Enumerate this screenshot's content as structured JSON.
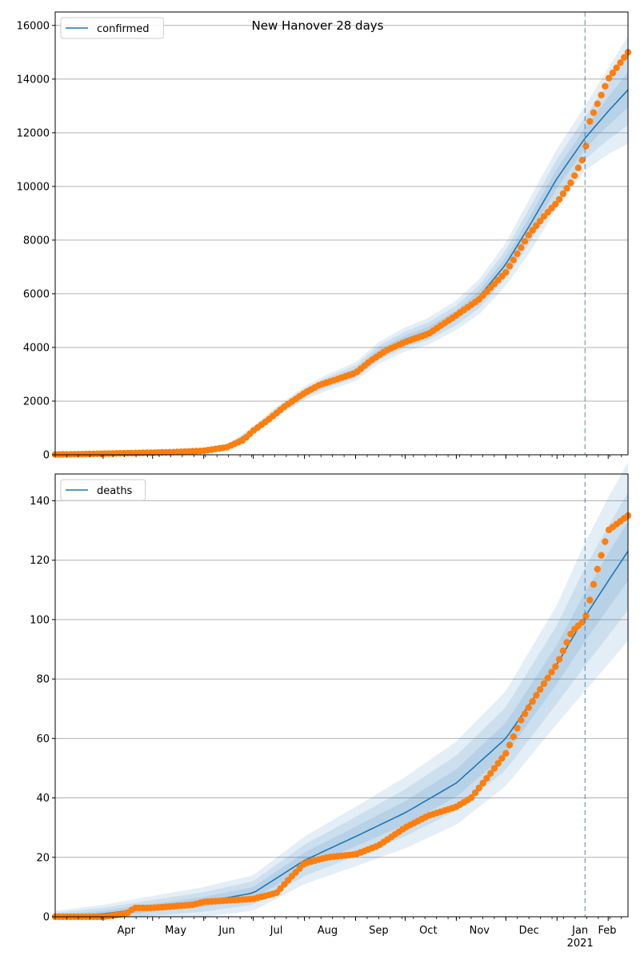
{
  "title": "New Hanover 28 days",
  "colors": {
    "model_line": "#1f77b4",
    "observed_points": "#ff7f0e",
    "band": "#1f77b4",
    "grid": "#b0b0b0",
    "forecast_marker": "#1f77b4"
  },
  "x_axis": {
    "tick_labels": [
      "Apr",
      "May",
      "Jun",
      "Jul",
      "Aug",
      "Sep",
      "Oct",
      "Nov",
      "Dec",
      "Jan",
      "Feb"
    ],
    "year_label": "2021",
    "xlim": [
      "2020-03-03",
      "2021-02-13"
    ],
    "forecast_start": "2021-01-18"
  },
  "chart_data": [
    {
      "type": "line",
      "series_name": "confirmed",
      "legend": "confirmed",
      "legend_position": "top-left",
      "ylim": [
        0,
        16500
      ],
      "yticks": [
        0,
        2000,
        4000,
        6000,
        8000,
        10000,
        12000,
        14000,
        16000
      ],
      "ytick_labels": [
        "0",
        "2000",
        "4000",
        "6000",
        "8000",
        "10000",
        "12000",
        "14000",
        "16000"
      ],
      "grid": "horizontal",
      "model": {
        "dates": [
          "2020-03-03",
          "2020-04-01",
          "2020-05-01",
          "2020-06-01",
          "2020-06-15",
          "2020-07-01",
          "2020-07-15",
          "2020-08-01",
          "2020-08-15",
          "2020-09-01",
          "2020-09-15",
          "2020-10-01",
          "2020-10-15",
          "2020-11-01",
          "2020-11-15",
          "2020-12-01",
          "2020-12-15",
          "2021-01-01",
          "2021-01-18",
          "2021-02-01",
          "2021-02-13"
        ],
        "values": [
          0,
          20,
          60,
          150,
          300,
          900,
          1600,
          2300,
          2700,
          3100,
          3800,
          4300,
          4600,
          5200,
          5900,
          7100,
          8500,
          10300,
          11800,
          12800,
          13600
        ],
        "band_spread": [
          0,
          10,
          20,
          40,
          80,
          150,
          200,
          250,
          300,
          350,
          400,
          450,
          500,
          550,
          650,
          800,
          1000,
          1100,
          1200,
          1600,
          2000
        ]
      },
      "observed": {
        "dates": [
          "2020-03-03",
          "2020-03-15",
          "2020-04-01",
          "2020-04-15",
          "2020-05-01",
          "2020-05-15",
          "2020-06-01",
          "2020-06-15",
          "2020-06-25",
          "2020-07-01",
          "2020-07-10",
          "2020-07-20",
          "2020-08-01",
          "2020-08-10",
          "2020-08-20",
          "2020-09-01",
          "2020-09-10",
          "2020-09-20",
          "2020-10-01",
          "2020-10-15",
          "2020-11-01",
          "2020-11-15",
          "2020-12-01",
          "2020-12-15",
          "2020-12-25",
          "2021-01-01",
          "2021-01-10",
          "2021-01-18",
          "2021-01-20",
          "2021-02-01",
          "2021-02-13"
        ],
        "values": [
          10,
          20,
          40,
          60,
          80,
          100,
          150,
          280,
          550,
          900,
          1300,
          1800,
          2300,
          2600,
          2800,
          3050,
          3500,
          3900,
          4200,
          4500,
          5200,
          5800,
          6800,
          8200,
          8950,
          9400,
          10200,
          11200,
          12300,
          14000,
          15000
        ]
      }
    },
    {
      "type": "line",
      "series_name": "deaths",
      "legend": "deaths",
      "legend_position": "top-left",
      "ylim": [
        0,
        149
      ],
      "yticks": [
        0,
        20,
        40,
        60,
        80,
        100,
        120,
        140
      ],
      "ytick_labels": [
        "0",
        "20",
        "40",
        "60",
        "80",
        "100",
        "120",
        "140"
      ],
      "grid": "horizontal",
      "model": {
        "dates": [
          "2020-03-03",
          "2020-04-01",
          "2020-05-01",
          "2020-06-01",
          "2020-07-01",
          "2020-08-01",
          "2020-09-01",
          "2020-10-01",
          "2020-11-01",
          "2020-12-01",
          "2021-01-01",
          "2021-01-18",
          "2021-02-01",
          "2021-02-13"
        ],
        "values": [
          0,
          1,
          3,
          5,
          8,
          19,
          27,
          35,
          45,
          60,
          85,
          101,
          113,
          123
        ],
        "band_spread": [
          2,
          3,
          4,
          5,
          6,
          8,
          10,
          12,
          14,
          16,
          20,
          25,
          28,
          30
        ]
      },
      "observed": {
        "dates": [
          "2020-03-03",
          "2020-04-01",
          "2020-04-15",
          "2020-04-20",
          "2020-05-01",
          "2020-05-25",
          "2020-06-01",
          "2020-07-01",
          "2020-07-15",
          "2020-07-25",
          "2020-08-01",
          "2020-08-15",
          "2020-09-01",
          "2020-09-15",
          "2020-10-01",
          "2020-10-15",
          "2020-11-01",
          "2020-11-10",
          "2020-11-20",
          "2020-12-01",
          "2020-12-10",
          "2020-12-20",
          "2021-01-01",
          "2021-01-10",
          "2021-01-18",
          "2021-01-25",
          "2021-02-01",
          "2021-02-13"
        ],
        "values": [
          0,
          0,
          1,
          3,
          3,
          4,
          5,
          6,
          8,
          14,
          18,
          20,
          21,
          24,
          30,
          34,
          37,
          40,
          47,
          55,
          66,
          75,
          85,
          96,
          100,
          116,
          130,
          135
        ]
      }
    }
  ]
}
